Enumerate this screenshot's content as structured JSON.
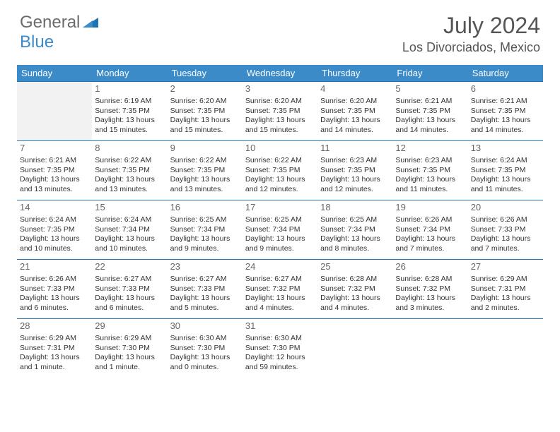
{
  "logo": {
    "part1": "General",
    "part2": "Blue"
  },
  "title": "July 2024",
  "location": "Los Divorciados, Mexico",
  "colors": {
    "header_bg": "#3b8bc9",
    "header_text": "#ffffff",
    "border": "#1f74b5",
    "blank_bg": "#f2f2f2",
    "text": "#333333",
    "title_text": "#555555"
  },
  "weekdays": [
    "Sunday",
    "Monday",
    "Tuesday",
    "Wednesday",
    "Thursday",
    "Friday",
    "Saturday"
  ],
  "weeks": [
    [
      {
        "day": "",
        "sunrise": "",
        "sunset": "",
        "daylight": "",
        "blank": true
      },
      {
        "day": "1",
        "sunrise": "Sunrise: 6:19 AM",
        "sunset": "Sunset: 7:35 PM",
        "daylight": "Daylight: 13 hours and 15 minutes."
      },
      {
        "day": "2",
        "sunrise": "Sunrise: 6:20 AM",
        "sunset": "Sunset: 7:35 PM",
        "daylight": "Daylight: 13 hours and 15 minutes."
      },
      {
        "day": "3",
        "sunrise": "Sunrise: 6:20 AM",
        "sunset": "Sunset: 7:35 PM",
        "daylight": "Daylight: 13 hours and 15 minutes."
      },
      {
        "day": "4",
        "sunrise": "Sunrise: 6:20 AM",
        "sunset": "Sunset: 7:35 PM",
        "daylight": "Daylight: 13 hours and 14 minutes."
      },
      {
        "day": "5",
        "sunrise": "Sunrise: 6:21 AM",
        "sunset": "Sunset: 7:35 PM",
        "daylight": "Daylight: 13 hours and 14 minutes."
      },
      {
        "day": "6",
        "sunrise": "Sunrise: 6:21 AM",
        "sunset": "Sunset: 7:35 PM",
        "daylight": "Daylight: 13 hours and 14 minutes."
      }
    ],
    [
      {
        "day": "7",
        "sunrise": "Sunrise: 6:21 AM",
        "sunset": "Sunset: 7:35 PM",
        "daylight": "Daylight: 13 hours and 13 minutes."
      },
      {
        "day": "8",
        "sunrise": "Sunrise: 6:22 AM",
        "sunset": "Sunset: 7:35 PM",
        "daylight": "Daylight: 13 hours and 13 minutes."
      },
      {
        "day": "9",
        "sunrise": "Sunrise: 6:22 AM",
        "sunset": "Sunset: 7:35 PM",
        "daylight": "Daylight: 13 hours and 13 minutes."
      },
      {
        "day": "10",
        "sunrise": "Sunrise: 6:22 AM",
        "sunset": "Sunset: 7:35 PM",
        "daylight": "Daylight: 13 hours and 12 minutes."
      },
      {
        "day": "11",
        "sunrise": "Sunrise: 6:23 AM",
        "sunset": "Sunset: 7:35 PM",
        "daylight": "Daylight: 13 hours and 12 minutes."
      },
      {
        "day": "12",
        "sunrise": "Sunrise: 6:23 AM",
        "sunset": "Sunset: 7:35 PM",
        "daylight": "Daylight: 13 hours and 11 minutes."
      },
      {
        "day": "13",
        "sunrise": "Sunrise: 6:24 AM",
        "sunset": "Sunset: 7:35 PM",
        "daylight": "Daylight: 13 hours and 11 minutes."
      }
    ],
    [
      {
        "day": "14",
        "sunrise": "Sunrise: 6:24 AM",
        "sunset": "Sunset: 7:35 PM",
        "daylight": "Daylight: 13 hours and 10 minutes."
      },
      {
        "day": "15",
        "sunrise": "Sunrise: 6:24 AM",
        "sunset": "Sunset: 7:34 PM",
        "daylight": "Daylight: 13 hours and 10 minutes."
      },
      {
        "day": "16",
        "sunrise": "Sunrise: 6:25 AM",
        "sunset": "Sunset: 7:34 PM",
        "daylight": "Daylight: 13 hours and 9 minutes."
      },
      {
        "day": "17",
        "sunrise": "Sunrise: 6:25 AM",
        "sunset": "Sunset: 7:34 PM",
        "daylight": "Daylight: 13 hours and 9 minutes."
      },
      {
        "day": "18",
        "sunrise": "Sunrise: 6:25 AM",
        "sunset": "Sunset: 7:34 PM",
        "daylight": "Daylight: 13 hours and 8 minutes."
      },
      {
        "day": "19",
        "sunrise": "Sunrise: 6:26 AM",
        "sunset": "Sunset: 7:34 PM",
        "daylight": "Daylight: 13 hours and 7 minutes."
      },
      {
        "day": "20",
        "sunrise": "Sunrise: 6:26 AM",
        "sunset": "Sunset: 7:33 PM",
        "daylight": "Daylight: 13 hours and 7 minutes."
      }
    ],
    [
      {
        "day": "21",
        "sunrise": "Sunrise: 6:26 AM",
        "sunset": "Sunset: 7:33 PM",
        "daylight": "Daylight: 13 hours and 6 minutes."
      },
      {
        "day": "22",
        "sunrise": "Sunrise: 6:27 AM",
        "sunset": "Sunset: 7:33 PM",
        "daylight": "Daylight: 13 hours and 6 minutes."
      },
      {
        "day": "23",
        "sunrise": "Sunrise: 6:27 AM",
        "sunset": "Sunset: 7:33 PM",
        "daylight": "Daylight: 13 hours and 5 minutes."
      },
      {
        "day": "24",
        "sunrise": "Sunrise: 6:27 AM",
        "sunset": "Sunset: 7:32 PM",
        "daylight": "Daylight: 13 hours and 4 minutes."
      },
      {
        "day": "25",
        "sunrise": "Sunrise: 6:28 AM",
        "sunset": "Sunset: 7:32 PM",
        "daylight": "Daylight: 13 hours and 4 minutes."
      },
      {
        "day": "26",
        "sunrise": "Sunrise: 6:28 AM",
        "sunset": "Sunset: 7:32 PM",
        "daylight": "Daylight: 13 hours and 3 minutes."
      },
      {
        "day": "27",
        "sunrise": "Sunrise: 6:29 AM",
        "sunset": "Sunset: 7:31 PM",
        "daylight": "Daylight: 13 hours and 2 minutes."
      }
    ],
    [
      {
        "day": "28",
        "sunrise": "Sunrise: 6:29 AM",
        "sunset": "Sunset: 7:31 PM",
        "daylight": "Daylight: 13 hours and 1 minute."
      },
      {
        "day": "29",
        "sunrise": "Sunrise: 6:29 AM",
        "sunset": "Sunset: 7:30 PM",
        "daylight": "Daylight: 13 hours and 1 minute."
      },
      {
        "day": "30",
        "sunrise": "Sunrise: 6:30 AM",
        "sunset": "Sunset: 7:30 PM",
        "daylight": "Daylight: 13 hours and 0 minutes."
      },
      {
        "day": "31",
        "sunrise": "Sunrise: 6:30 AM",
        "sunset": "Sunset: 7:30 PM",
        "daylight": "Daylight: 12 hours and 59 minutes."
      },
      {
        "day": "",
        "sunrise": "",
        "sunset": "",
        "daylight": "",
        "blank": true
      },
      {
        "day": "",
        "sunrise": "",
        "sunset": "",
        "daylight": "",
        "blank": true
      },
      {
        "day": "",
        "sunrise": "",
        "sunset": "",
        "daylight": "",
        "blank": true
      }
    ]
  ]
}
